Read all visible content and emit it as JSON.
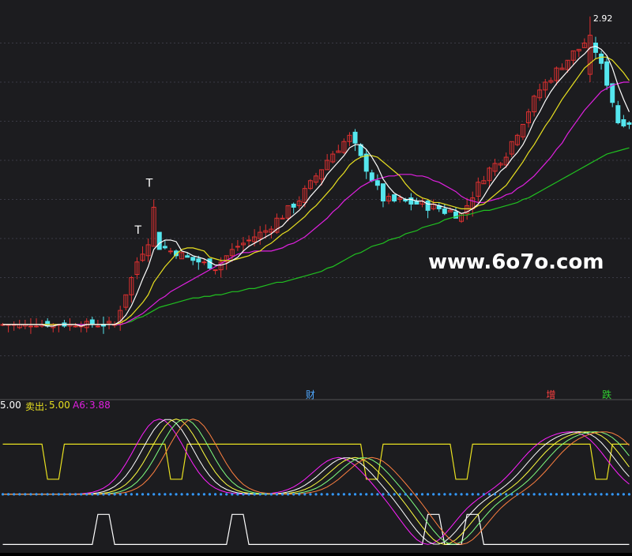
{
  "watermark": "www.6o7o.com",
  "indicator_header": {
    "left_value": "5.00",
    "sell_label": "卖出:",
    "sell_value": "5.00",
    "a6_label": "A6:",
    "a6_value": "3.88"
  },
  "marker_glyph": "T",
  "peak_label": "2.92",
  "event_markers": [
    {
      "text": "财",
      "color": "#4fa8ff",
      "day": 55
    },
    {
      "text": "增",
      "color": "#ff4040",
      "day": 98
    },
    {
      "text": "跌",
      "color": "#30d030",
      "day": 108
    }
  ],
  "colors": {
    "background": "#1c1c1f",
    "grid": "#3a3a44",
    "up_candle": "#e03030",
    "down_candle": "#55e6ee",
    "ma_white": "#ffffff",
    "ma_yellow": "#e8e020",
    "ma_magenta": "#e020e0",
    "ma_green": "#20c020",
    "sell_line": "#e8e020",
    "buy_line": "#ffffff",
    "dots": "#3399ff",
    "watermark": "#ffffff",
    "header_left": "#ffffff",
    "header_sell": "#e8e020",
    "header_a6": "#e020e0"
  },
  "chart_data": [
    {
      "type": "candlestick",
      "x_unit": "day",
      "y_unit": "price",
      "ylim": [
        0.5,
        3.0
      ],
      "grid": true,
      "candles": [],
      "ma_short": [],
      "ma_mid": [],
      "ma_long": [],
      "ma_longest": [],
      "t_markers_day": [
        25,
        27
      ]
    },
    {
      "type": "line",
      "ylim": [
        -1.5,
        7
      ],
      "sell_threshold": 5.0,
      "oscillators": [
        {
          "color": "#ff20ff",
          "values": []
        },
        {
          "color": "#ffffff",
          "values": []
        },
        {
          "color": "#ffff40",
          "values": []
        },
        {
          "color": "#80ff80",
          "values": []
        },
        {
          "color": "#ff8040",
          "values": []
        }
      ],
      "sell_line": [],
      "buy_line": [],
      "dot_level": 2.0
    }
  ]
}
